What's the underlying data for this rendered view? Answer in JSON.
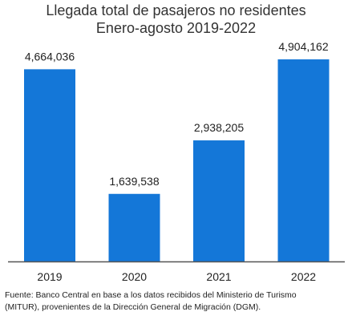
{
  "chart_data": {
    "type": "bar",
    "title": "Llegada total de pasajeros no residentes",
    "subtitle": "Enero-agosto 2019-2022",
    "categories": [
      "2019",
      "2020",
      "2021",
      "2022"
    ],
    "values": [
      4664036,
      1639538,
      2938205,
      4904162
    ],
    "value_labels": [
      "4,664,036",
      "1,639,538",
      "2,938,205",
      "4,904,162"
    ],
    "xlabel": "",
    "ylabel": "",
    "ylim": [
      0,
      5800000
    ],
    "grid": false,
    "bar_color": "#1477d8",
    "axis_color": "#555555"
  },
  "source": {
    "line1": "Fuente: Banco Central en base a los datos recibidos del Ministerio de Turismo",
    "line2": "(MITUR), provenientes de la Dirección General de Migración (DGM)."
  }
}
